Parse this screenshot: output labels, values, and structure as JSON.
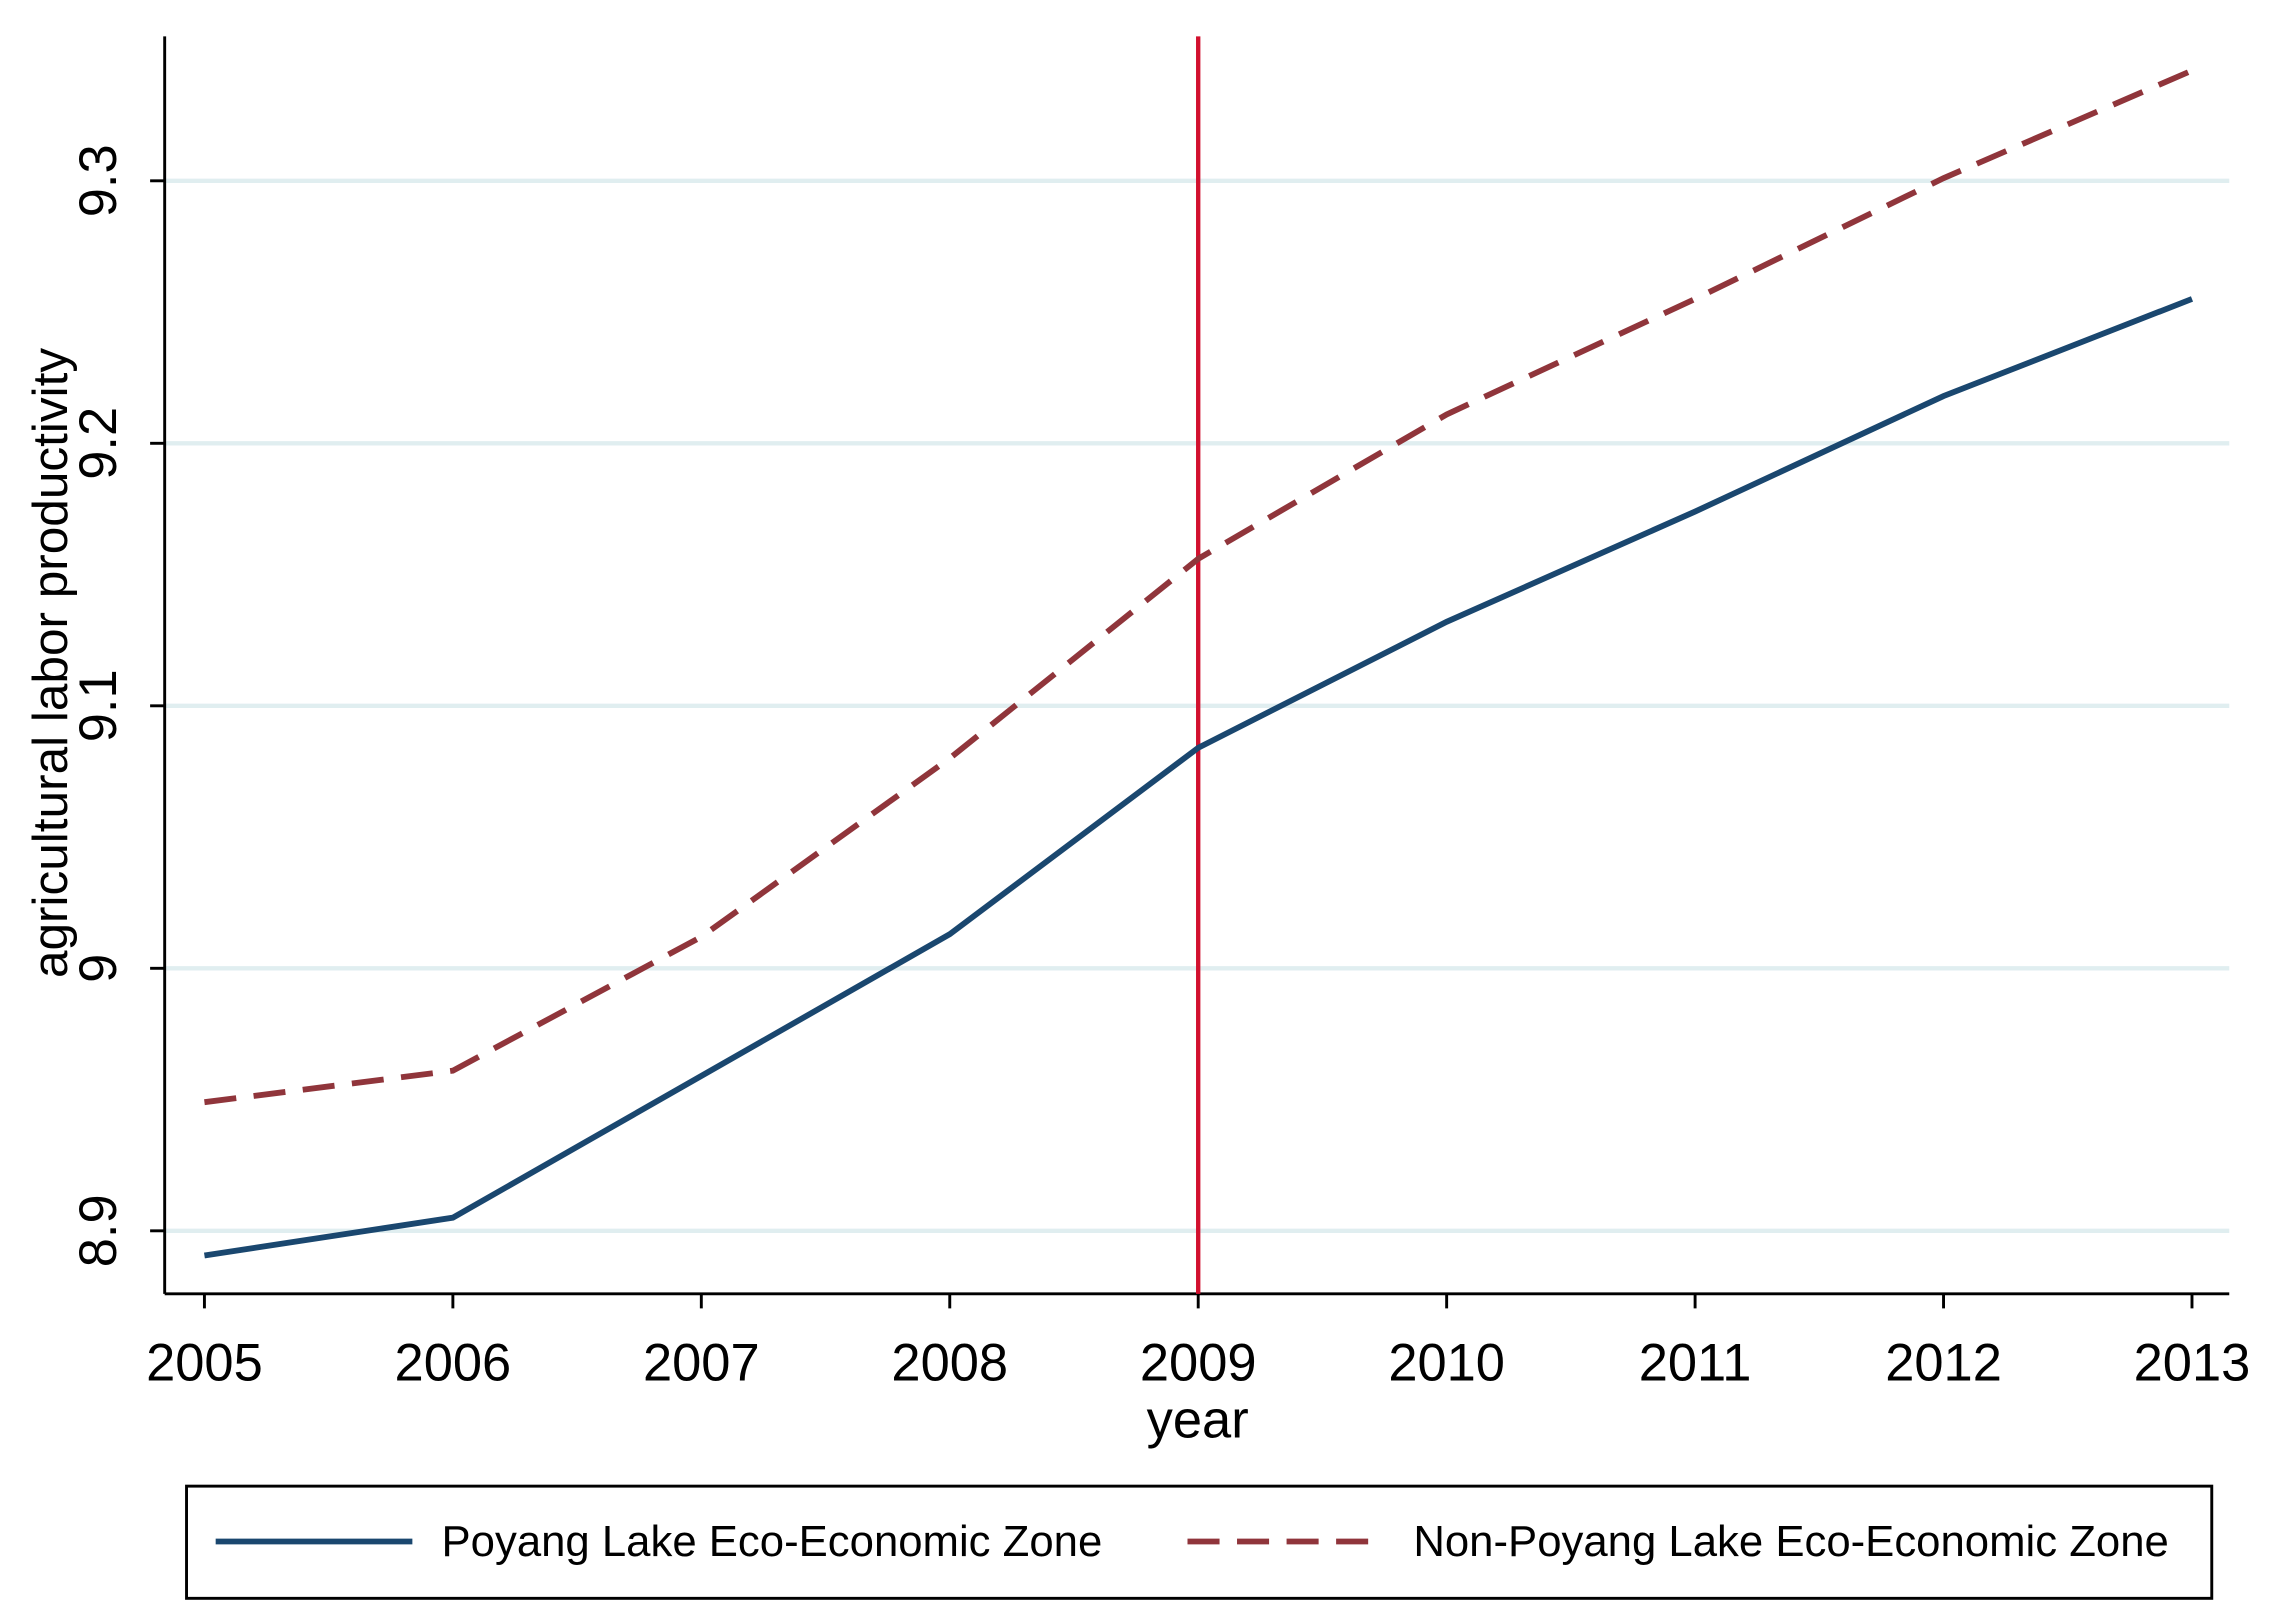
{
  "chart_data": {
    "type": "line",
    "x_label": "year",
    "y_label": "agricultural labor productivity",
    "x": [
      2005,
      2006,
      2007,
      2008,
      2009,
      2010,
      2011,
      2012,
      2013
    ],
    "series": [
      {
        "name": "Poyang Lake Eco-Economic Zone",
        "color": "#1a476f",
        "dash": "solid",
        "values": [
          8.8906,
          8.905,
          8.959,
          9.013,
          9.084,
          9.132,
          9.174,
          9.218,
          9.255
        ]
      },
      {
        "name": "Non-Poyang Lake Eco-Economic Zone",
        "color": "#90353b",
        "dash": "dashed",
        "values": [
          8.949,
          8.961,
          9.012,
          9.08,
          9.156,
          9.211,
          9.255,
          9.301,
          9.342
        ]
      }
    ],
    "vline": {
      "x": 2009,
      "color": "#d2102e"
    },
    "xlim": [
      2004.84,
      2013.15
    ],
    "ylim": [
      8.876,
      9.355
    ],
    "xticks": [
      2005,
      2006,
      2007,
      2008,
      2009,
      2010,
      2011,
      2012,
      2013
    ],
    "yticks": [
      8.9,
      9,
      9.1,
      9.2,
      9.3
    ],
    "grid": true,
    "grid_color": "#e0eef0",
    "legend": "bottom"
  }
}
